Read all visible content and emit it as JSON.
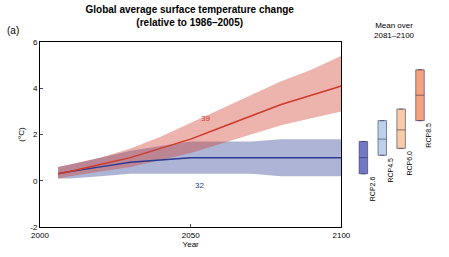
{
  "chart_data": {
    "type": "line",
    "panel": "(a)",
    "title": "Global average surface temperature change\n(relative to 1986–2005)",
    "x_label": "Year",
    "y_label": "(°C)",
    "xlim": [
      2000,
      2100
    ],
    "xticks": [
      2000,
      2050,
      2100
    ],
    "ylim": [
      -2,
      6
    ],
    "yticks": [
      -2,
      0,
      2,
      4,
      6
    ],
    "grid": false,
    "x": [
      2006,
      2010,
      2020,
      2030,
      2040,
      2050,
      2060,
      2070,
      2080,
      2090,
      2100
    ],
    "series": [
      {
        "color": "#2b3990",
        "values": [
          0.3,
          0.4,
          0.6,
          0.8,
          0.9,
          1.0,
          1.0,
          1.0,
          1.0,
          1.0,
          1.0
        ],
        "lower": [
          0.1,
          0.1,
          0.2,
          0.3,
          0.3,
          0.3,
          0.3,
          0.3,
          0.2,
          0.2,
          0.2
        ],
        "upper": [
          0.6,
          0.7,
          1.0,
          1.3,
          1.5,
          1.7,
          1.7,
          1.7,
          1.8,
          1.8,
          1.8
        ]
      },
      {
        "color": "#d0392a",
        "values": [
          0.3,
          0.4,
          0.7,
          1.0,
          1.4,
          1.8,
          2.3,
          2.8,
          3.3,
          3.7,
          4.1
        ],
        "lower": [
          0.1,
          0.2,
          0.4,
          0.6,
          0.9,
          1.2,
          1.6,
          2.0,
          2.4,
          2.7,
          3.0
        ],
        "upper": [
          0.6,
          0.7,
          1.0,
          1.4,
          1.9,
          2.5,
          3.1,
          3.7,
          4.3,
          4.8,
          5.4
        ]
      }
    ],
    "annotations": [
      {
        "text": "39",
        "x": 2055,
        "y": 2.7,
        "color": "#d0392a"
      },
      {
        "text": "32",
        "x": 2053,
        "y": -0.2,
        "color": "#2b3990"
      }
    ],
    "summary": {
      "title": "Mean over\n2081–2100",
      "categories": [
        "RCP2.6",
        "RCP4.5",
        "RCP6.0",
        "RCP8.5"
      ],
      "low": [
        0.3,
        1.1,
        1.4,
        2.6
      ],
      "mean": [
        1.0,
        1.8,
        2.2,
        3.7
      ],
      "high": [
        1.7,
        2.6,
        3.1,
        4.8
      ],
      "colors": [
        "#7179c6",
        "#bcd2ea",
        "#f9cca8",
        "#f5a27e"
      ]
    }
  }
}
